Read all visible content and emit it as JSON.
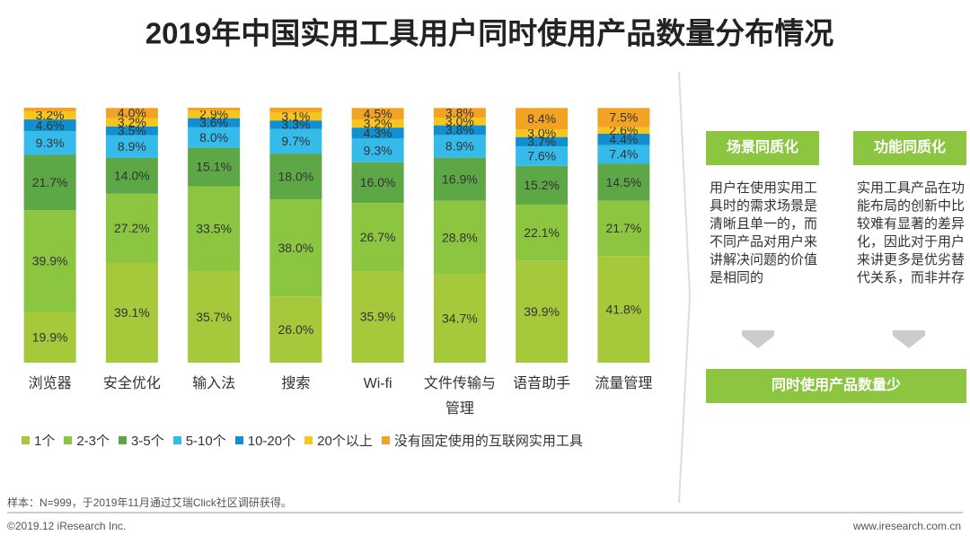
{
  "chart_data": {
    "type": "stacked_bar",
    "title": "2019年中国实用工具用户同时使用产品数量分布情况",
    "categories": [
      "浏览器",
      "安全优化",
      "输入法",
      "搜索",
      "Wi-fi",
      "文件传输与管理",
      "语音助手",
      "流量管理"
    ],
    "ylim": [
      0,
      100
    ],
    "legend": "bottom",
    "series": [
      {
        "name": "1个",
        "color": "#a6c93b",
        "values": [
          19.9,
          39.1,
          35.7,
          26.0,
          35.9,
          34.7,
          39.9,
          41.8
        ],
        "value_labels": [
          "19.9%",
          "39.1%",
          "35.7%",
          "26.0%",
          "35.9%",
          "34.7%",
          "39.9%",
          "41.8%"
        ]
      },
      {
        "name": "2-3个",
        "color": "#8cc540",
        "values": [
          39.9,
          27.2,
          33.5,
          38.0,
          26.7,
          28.8,
          22.1,
          21.7
        ],
        "value_labels": [
          "39.9%",
          "27.2%",
          "33.5%",
          "38.0%",
          "26.7%",
          "28.8%",
          "22.1%",
          "21.7%"
        ]
      },
      {
        "name": "3-5个",
        "color": "#5ea746",
        "values": [
          21.7,
          14.0,
          15.1,
          18.0,
          16.0,
          16.9,
          15.2,
          14.5
        ],
        "value_labels": [
          "21.7%",
          "14.0%",
          "15.1%",
          "18.0%",
          "16.0%",
          "16.9%",
          "15.2%",
          "14.5%"
        ]
      },
      {
        "name": "5-10个",
        "color": "#35bbe9",
        "values": [
          9.3,
          8.9,
          8.0,
          9.7,
          9.3,
          8.9,
          7.6,
          7.4
        ],
        "value_labels": [
          "9.3%",
          "8.9%",
          "8.0%",
          "9.7%",
          "9.3%",
          "8.9%",
          "7.6%",
          "7.4%"
        ]
      },
      {
        "name": "10-20个",
        "color": "#118fd0",
        "values": [
          4.6,
          3.5,
          3.6,
          3.3,
          4.3,
          3.8,
          3.7,
          4.4
        ],
        "value_labels": [
          "4.6%",
          "3.5%",
          "3.6%",
          "3.3%",
          "4.3%",
          "3.8%",
          "3.7%",
          "4.4%"
        ]
      },
      {
        "name": "20个以上",
        "color": "#f7c51c",
        "values": [
          3.2,
          3.2,
          2.9,
          3.1,
          3.2,
          3.0,
          3.0,
          2.6
        ],
        "value_labels": [
          "3.2%",
          "3.2%",
          "2.9%",
          "3.1%",
          "3.2%",
          "3.0%",
          "3.0%",
          "2.6%"
        ]
      },
      {
        "name": "没有固定使用的互联网实用工具",
        "color": "#f2a324",
        "values": [
          1.4,
          4.0,
          1.2,
          1.9,
          4.5,
          3.8,
          8.4,
          7.5
        ],
        "value_labels": [
          null,
          "4.0%",
          null,
          null,
          "4.5%",
          "3.8%",
          "8.4%",
          "7.5%"
        ]
      }
    ]
  },
  "panel": {
    "left_header": "场景同质化",
    "left_text": "用户在使用实用工具时的需求场景是清晰且单一的，而不同产品对用户来讲解决问题的价值是相同的",
    "right_header": "功能同质化",
    "right_text": "实用工具产品在功能布局的创新中比较难有显著的差异化，因此对于用户来讲更多是优劣替代关系，而非并存",
    "conclusion": "同时使用产品数量少"
  },
  "footer": {
    "note": "样本：N=999，于2019年11月通过艾瑞Click社区调研获得。",
    "copyright": "©2019.12 iResearch Inc.",
    "website": "www.iresearch.com.cn"
  }
}
